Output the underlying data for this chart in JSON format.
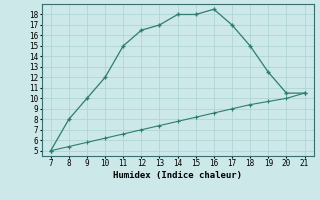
{
  "x": [
    7,
    8,
    9,
    10,
    11,
    12,
    13,
    14,
    15,
    16,
    17,
    18,
    19,
    20,
    21
  ],
  "y_top": [
    5,
    8,
    10,
    12,
    15,
    16.5,
    17,
    18,
    18,
    18.5,
    17,
    15,
    12.5,
    10.5,
    10.5
  ],
  "y_bottom": [
    5,
    5.4,
    5.8,
    6.2,
    6.6,
    7.0,
    7.4,
    7.8,
    8.2,
    8.6,
    9.0,
    9.4,
    9.7,
    10.0,
    10.5
  ],
  "line_color": "#2e7d6e",
  "bg_color": "#cce8e8",
  "grid_color": "#b0d4d4",
  "xlabel": "Humidex (Indice chaleur)",
  "xlim": [
    6.5,
    21.5
  ],
  "ylim": [
    4.5,
    19
  ],
  "xticks": [
    7,
    8,
    9,
    10,
    11,
    12,
    13,
    14,
    15,
    16,
    17,
    18,
    19,
    20,
    21
  ],
  "yticks": [
    5,
    6,
    7,
    8,
    9,
    10,
    11,
    12,
    13,
    14,
    15,
    16,
    17,
    18
  ]
}
